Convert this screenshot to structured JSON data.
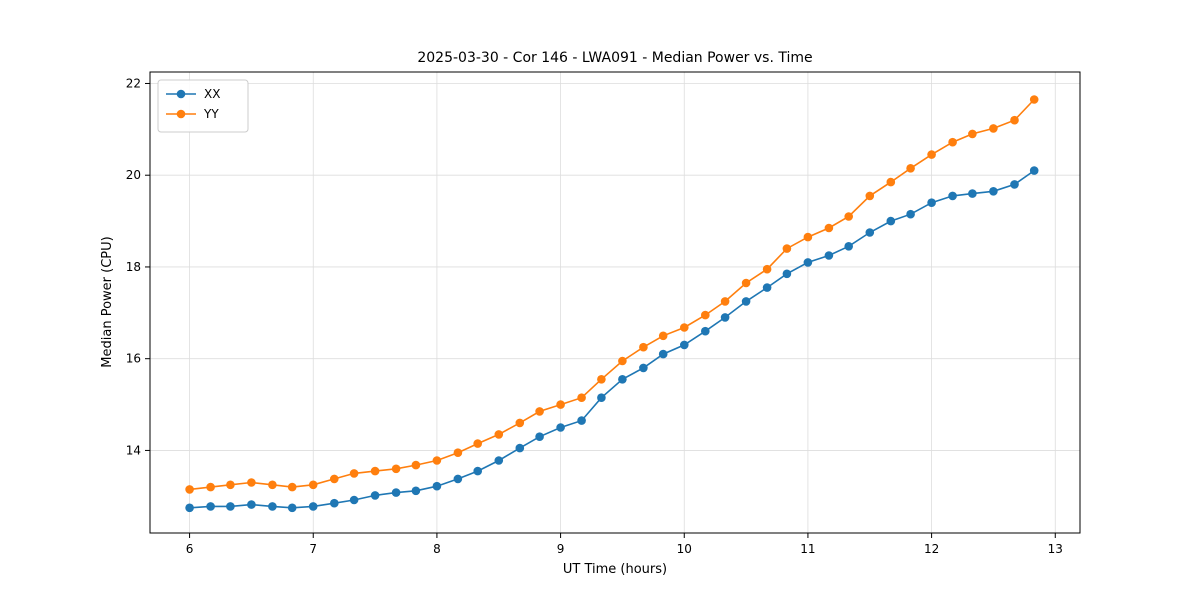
{
  "chart_data": {
    "type": "line",
    "title": "2025-03-30 - Cor 146 - LWA091 - Median Power vs. Time",
    "xlabel": "UT Time (hours)",
    "ylabel": "Median Power (CPU)",
    "xlim": [
      5.68,
      13.2
    ],
    "ylim": [
      12.2,
      22.25
    ],
    "xticks": [
      6,
      7,
      8,
      9,
      10,
      11,
      12,
      13
    ],
    "yticks": [
      14,
      16,
      18,
      20,
      22
    ],
    "grid": true,
    "grid_color": "#dddddd",
    "legend_position": "upper left",
    "x": [
      6.0,
      6.17,
      6.33,
      6.5,
      6.67,
      6.83,
      7.0,
      7.17,
      7.33,
      7.5,
      7.67,
      7.83,
      8.0,
      8.17,
      8.33,
      8.5,
      8.67,
      8.83,
      9.0,
      9.17,
      9.33,
      9.5,
      9.67,
      9.83,
      10.0,
      10.17,
      10.33,
      10.5,
      10.67,
      10.83,
      11.0,
      11.17,
      11.33,
      11.5,
      11.67,
      11.83,
      12.0,
      12.17,
      12.33,
      12.5,
      12.67,
      12.83
    ],
    "series": [
      {
        "name": "XX",
        "color": "#1f77b4",
        "values": [
          12.75,
          12.78,
          12.78,
          12.82,
          12.78,
          12.75,
          12.78,
          12.85,
          12.92,
          13.02,
          13.08,
          13.12,
          13.22,
          13.38,
          13.55,
          13.78,
          14.05,
          14.3,
          14.5,
          14.65,
          15.15,
          15.55,
          15.8,
          16.1,
          16.3,
          16.6,
          16.9,
          17.25,
          17.55,
          17.85,
          18.1,
          18.25,
          18.45,
          18.75,
          19.0,
          19.15,
          19.4,
          19.55,
          19.6,
          19.65,
          19.8,
          20.1
        ]
      },
      {
        "name": "YY",
        "color": "#ff7f0e",
        "values": [
          13.15,
          13.2,
          13.25,
          13.3,
          13.25,
          13.2,
          13.25,
          13.38,
          13.5,
          13.55,
          13.6,
          13.68,
          13.78,
          13.95,
          14.15,
          14.35,
          14.6,
          14.85,
          15.0,
          15.15,
          15.55,
          15.95,
          16.25,
          16.5,
          16.68,
          16.95,
          17.25,
          17.65,
          17.95,
          18.4,
          18.65,
          18.85,
          19.1,
          19.55,
          19.85,
          20.15,
          20.45,
          20.72,
          20.9,
          21.02,
          21.2,
          21.65
        ]
      }
    ]
  }
}
